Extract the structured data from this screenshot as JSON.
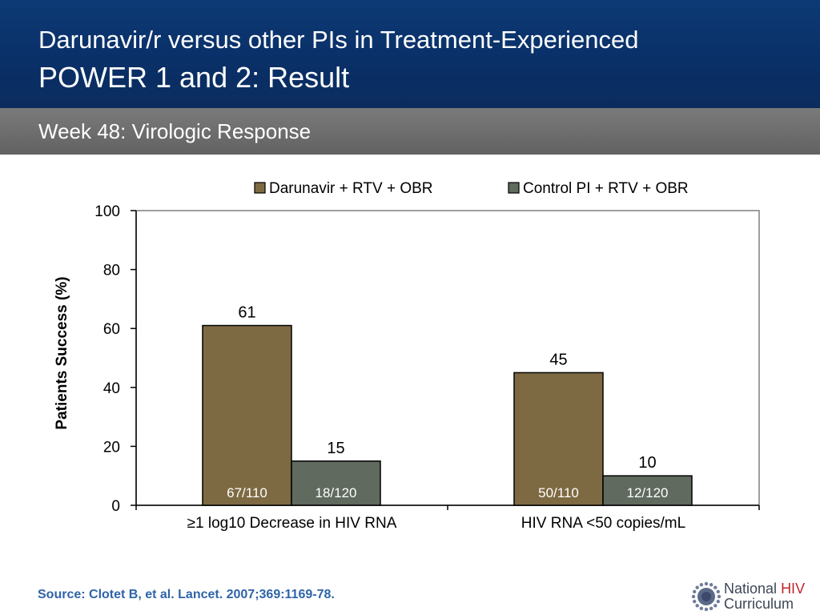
{
  "header": {
    "title_line1": "Darunavir/r versus other PIs in Treatment-Experienced",
    "title_line2": "POWER 1 and 2: Result"
  },
  "subtitle": "Week 48: Virologic Response",
  "chart_data": {
    "type": "bar",
    "categories": [
      "≥1 log10 Decrease in HIV RNA",
      "HIV RNA <50 copies/mL"
    ],
    "series": [
      {
        "name": "Darunavir + RTV + OBR",
        "values": [
          61,
          45
        ],
        "fractions": [
          "67/110",
          "50/110"
        ],
        "color": "#7e6a42"
      },
      {
        "name": "Control PI + RTV + OBR",
        "values": [
          15,
          10
        ],
        "fractions": [
          "18/120",
          "12/120"
        ],
        "color": "#606a5e"
      }
    ],
    "ylabel": "Patients Success (%)",
    "ylim": [
      0,
      100
    ],
    "yticks": [
      0,
      20,
      40,
      60,
      80,
      100
    ],
    "grid": false,
    "legend": "top"
  },
  "footer": {
    "source": "Source: Clotet B, et al. Lancet. 2007;369:1169-78.",
    "logo_word1": "National",
    "logo_word2": "HIV",
    "logo_word3": "Curriculum"
  }
}
